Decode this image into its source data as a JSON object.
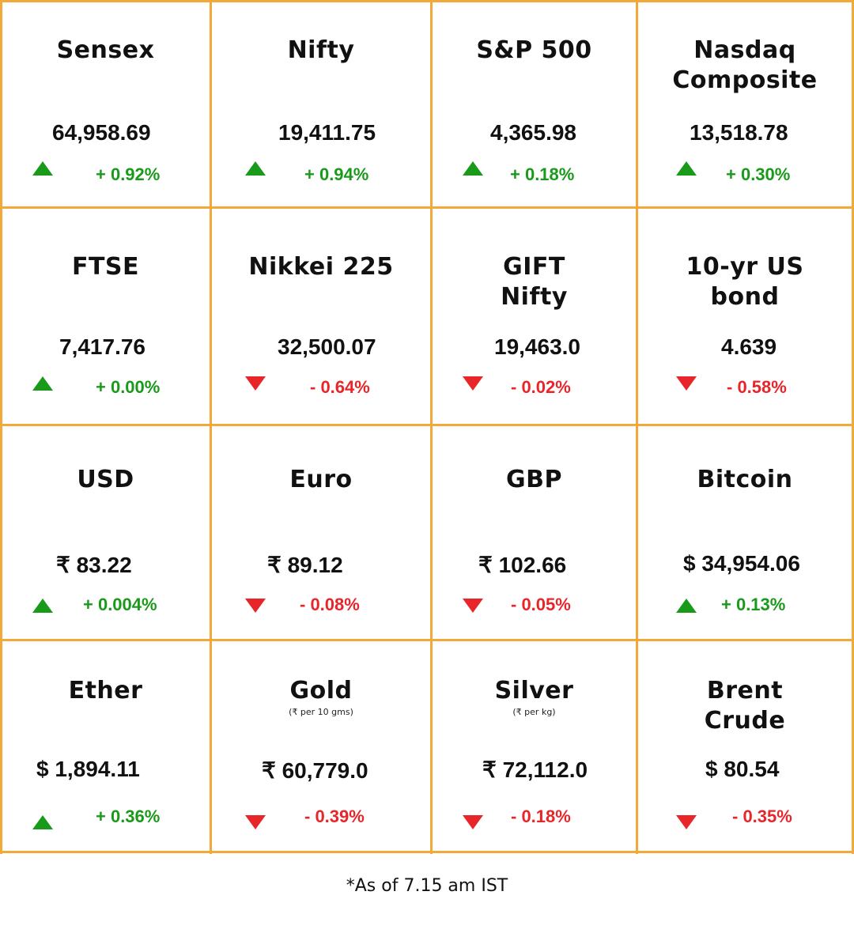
{
  "colors": {
    "border": "#f5a83a",
    "up": "#1a9a1a",
    "down": "#e8262a",
    "text": "#111111"
  },
  "cells": [
    {
      "title": "Sensex",
      "value": "64,958.69",
      "change": "+ 0.92%",
      "direction": "up"
    },
    {
      "title": "Nifty",
      "value": "19,411.75",
      "change": "+ 0.94%",
      "direction": "up"
    },
    {
      "title": "S&P 500",
      "value": "4,365.98",
      "change": "+ 0.18%",
      "direction": "up"
    },
    {
      "title": "Nasdaq Composite",
      "value": "13,518.78",
      "change": "+ 0.30%",
      "direction": "up"
    },
    {
      "title": "FTSE",
      "value": "7,417.76",
      "change": "+ 0.00%",
      "direction": "up"
    },
    {
      "title": "Nikkei 225",
      "value": "32,500.07",
      "change": "- 0.64%",
      "direction": "down"
    },
    {
      "title": "GIFT Nifty",
      "value": "19,463.0",
      "change": "- 0.02%",
      "direction": "down"
    },
    {
      "title": "10-yr US bond",
      "value": "4.639",
      "change": "- 0.58%",
      "direction": "down"
    },
    {
      "title": "USD",
      "value": "₹ 83.22",
      "change": "+ 0.004%",
      "direction": "up"
    },
    {
      "title": "Euro",
      "value": "₹ 89.12",
      "change": "- 0.08%",
      "direction": "down"
    },
    {
      "title": "GBP",
      "value": "₹ 102.66",
      "change": "- 0.05%",
      "direction": "down"
    },
    {
      "title": "Bitcoin",
      "value": "$ 34,954.06",
      "change": "+ 0.13%",
      "direction": "up"
    },
    {
      "title": "Ether",
      "value": "$ 1,894.11",
      "change": "+ 0.36%",
      "direction": "up"
    },
    {
      "title": "Gold",
      "subtitle": "(₹ per 10 gms)",
      "value": "₹ 60,779.0",
      "change": "- 0.39%",
      "direction": "down"
    },
    {
      "title": "Silver",
      "subtitle": "(₹ per kg)",
      "value": "₹ 72,112.0",
      "change": "- 0.18%",
      "direction": "down"
    },
    {
      "title": "Brent Crude",
      "value": "$ 80.54",
      "change": "- 0.35%",
      "direction": "down"
    }
  ],
  "footnote": "*As of 7.15 am IST"
}
